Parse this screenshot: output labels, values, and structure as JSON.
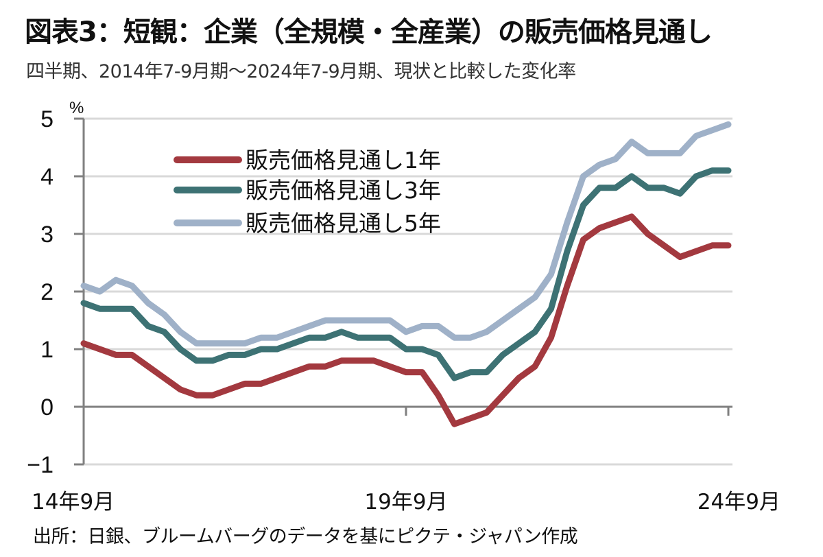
{
  "header": {
    "title": "図表3：短観：企業（全規模・全産業）の販売価格見通し",
    "subtitle": "四半期、2014年7-9月期～2024年7-9月期、現状と比較した変化率"
  },
  "footer": {
    "source": "出所：日銀、ブルームバーグのデータを基にピクテ・ジャパン作成"
  },
  "chart_data": {
    "type": "line",
    "title": "図表3：短観：企業（全規模・全産業）の販売価格見通し",
    "subtitle": "四半期、2014年7-9月期～2024年7-9月期、現状と比較した変化率",
    "xlabel": "",
    "ylabel": "%",
    "ylim": [
      -1,
      5
    ],
    "yticks": [
      -1,
      0,
      1,
      2,
      3,
      4,
      5
    ],
    "ytick_labels": [
      "-1",
      "0",
      "1",
      "2",
      "3",
      "4",
      "5"
    ],
    "x_start": "2014Q3",
    "x_end": "2024Q3",
    "x_frequency": "quarterly",
    "xtick_labels": [
      {
        "label": "14年9月",
        "index": 0
      },
      {
        "label": "19年9月",
        "index": 20
      },
      {
        "label": "24年9月",
        "index": 40
      }
    ],
    "grid": "horizontal",
    "legend_position": "upper-left-inside",
    "series": [
      {
        "name": "販売価格見通し1年",
        "color": "#a3393f",
        "values": [
          1.1,
          1.0,
          0.9,
          0.9,
          0.7,
          0.5,
          0.3,
          0.2,
          0.2,
          0.3,
          0.4,
          0.4,
          0.5,
          0.6,
          0.7,
          0.7,
          0.8,
          0.8,
          0.8,
          0.7,
          0.6,
          0.6,
          0.2,
          -0.3,
          -0.2,
          -0.1,
          0.2,
          0.5,
          0.7,
          1.2,
          2.1,
          2.9,
          3.1,
          3.2,
          3.3,
          3.0,
          2.8,
          2.6,
          2.7,
          2.8,
          2.8
        ]
      },
      {
        "name": "販売価格見通し3年",
        "color": "#3d7274",
        "values": [
          1.8,
          1.7,
          1.7,
          1.7,
          1.4,
          1.3,
          1.0,
          0.8,
          0.8,
          0.9,
          0.9,
          1.0,
          1.0,
          1.1,
          1.2,
          1.2,
          1.3,
          1.2,
          1.2,
          1.2,
          1.0,
          1.0,
          0.9,
          0.5,
          0.6,
          0.6,
          0.9,
          1.1,
          1.3,
          1.7,
          2.7,
          3.5,
          3.8,
          3.8,
          4.0,
          3.8,
          3.8,
          3.7,
          4.0,
          4.1,
          4.1
        ]
      },
      {
        "name": "販売価格見通し5年",
        "color": "#9fb1c8",
        "values": [
          2.1,
          2.0,
          2.2,
          2.1,
          1.8,
          1.6,
          1.3,
          1.1,
          1.1,
          1.1,
          1.1,
          1.2,
          1.2,
          1.3,
          1.4,
          1.5,
          1.5,
          1.5,
          1.5,
          1.5,
          1.3,
          1.4,
          1.4,
          1.2,
          1.2,
          1.3,
          1.5,
          1.7,
          1.9,
          2.3,
          3.2,
          4.0,
          4.2,
          4.3,
          4.6,
          4.4,
          4.4,
          4.4,
          4.7,
          4.8,
          4.9
        ]
      }
    ]
  },
  "style": {
    "gridline_color": "#d9d9d9",
    "axis_color": "#808080"
  }
}
